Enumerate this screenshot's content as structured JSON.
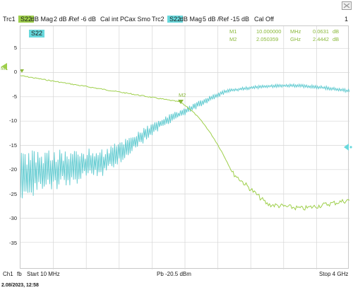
{
  "header": {
    "trace1": {
      "id": "Trc1",
      "chip": "S22",
      "format": "dB Mag",
      "scale": "2 dB /",
      "ref": "Ref -6 dB",
      "cal": "Cal int PCax Smo"
    },
    "trace2": {
      "id": "Trc2",
      "chip": "S22",
      "format": "dB Mag",
      "scale": "5 dB /",
      "ref": "Ref -15 dB",
      "cal": "Cal Off"
    },
    "channel_number": "1",
    "active_param": "S22"
  },
  "markers": [
    {
      "label": "M1",
      "freq": "10.000000",
      "unit": "MHz",
      "value": "0.0631",
      "vunit": "dB"
    },
    {
      "label": "M2",
      "freq": "2.050359",
      "unit": "GHz",
      "value": "2.4442",
      "vunit": "dB"
    }
  ],
  "plot_markers": {
    "m1": "M1",
    "m2": "M2"
  },
  "y_ticks": [
    "5",
    "0",
    "-5",
    "-10",
    "-15",
    "-20",
    "-25",
    "-30",
    "-35"
  ],
  "colors": {
    "trace1": "#9ecf4a",
    "trace2": "#68d9dd",
    "grid": "#d6d6d6"
  },
  "footer": {
    "channel": "Ch1",
    "fb": "fb",
    "start": "Start  10 MHz",
    "power": "Pb  -20.5 dBm",
    "stop": "Stop  4 GHz",
    "timestamp": "2.08/2023, 12:58"
  }
}
